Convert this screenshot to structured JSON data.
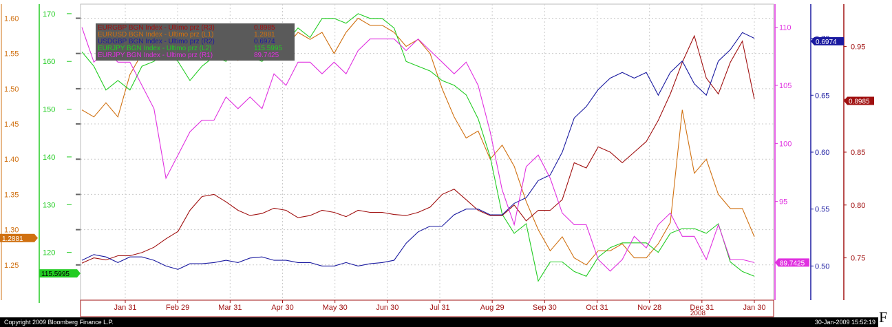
{
  "chart_data": {
    "type": "line",
    "x_ticks": [
      "Jan 31",
      "Feb 29",
      "Mar 31",
      "Apr 30",
      "May 30",
      "Jun 30",
      "Jul 31",
      "Aug 29",
      "Sep 30",
      "Oct 31",
      "Nov 28",
      "Dec 31",
      "Jan 30"
    ],
    "x_year_label": "2008",
    "grid": true,
    "axes": {
      "L1": {
        "color": "#d07010",
        "ticks": [
          "1.25",
          "1.30",
          "1.35",
          "1.40",
          "1.45",
          "1.50",
          "1.55",
          "1.60"
        ],
        "range": [
          1.2,
          1.62
        ],
        "last_badge": "1.2881"
      },
      "L2": {
        "color": "#22cc22",
        "ticks": [
          "120",
          "130",
          "140",
          "150",
          "160",
          "170"
        ],
        "range": [
          110,
          172
        ],
        "last_badge": "115.5995"
      },
      "R1": {
        "color": "#e030e0",
        "ticks": [
          "95",
          "100",
          "105",
          "110"
        ],
        "range": [
          86.5,
          112.0
        ],
        "last_badge": "89.7425"
      },
      "R2": {
        "color": "#1a1aa0",
        "ticks": [
          "0.50",
          "0.55",
          "0.60",
          "0.65",
          "0.70"
        ],
        "range": [
          0.47,
          0.73
        ],
        "last_badge": "0.6974"
      },
      "R3": {
        "color": "#a01010",
        "ticks": [
          "0.75",
          "0.80",
          "0.85",
          "0.90",
          "0.95"
        ],
        "range": [
          0.71,
          0.99
        ],
        "last_badge": "0.8985"
      }
    },
    "series": [
      {
        "name": "EURUSD BGN Index - Ultimo prz (L1)",
        "axis": "L1",
        "color": "#d07010",
        "values": [
          1.47,
          1.46,
          1.48,
          1.46,
          1.52,
          1.55,
          1.56,
          1.56,
          1.58,
          1.57,
          1.55,
          1.56,
          1.55,
          1.54,
          1.57,
          1.59,
          1.57,
          1.56,
          1.58,
          1.57,
          1.58,
          1.55,
          1.58,
          1.6,
          1.59,
          1.59,
          1.58,
          1.56,
          1.57,
          1.55,
          1.5,
          1.46,
          1.43,
          1.44,
          1.4,
          1.42,
          1.39,
          1.34,
          1.3,
          1.27,
          1.29,
          1.26,
          1.25,
          1.27,
          1.27,
          1.28,
          1.26,
          1.26,
          1.28,
          1.31,
          1.47,
          1.38,
          1.4,
          1.35,
          1.33,
          1.33,
          1.29
        ]
      },
      {
        "name": "EURJPY BGN Index - Ultimo prz (L2)",
        "axis": "L2",
        "color": "#22cc22",
        "values": [
          162,
          159,
          154,
          156,
          154,
          159,
          160,
          162,
          160,
          156,
          159,
          161,
          160,
          164,
          161,
          160,
          162,
          164,
          167,
          165,
          169,
          169,
          168,
          170,
          169,
          169,
          167,
          160,
          159,
          158,
          156,
          155,
          153,
          148,
          140,
          128,
          124,
          126,
          114,
          118,
          118,
          116,
          115,
          119,
          121,
          122,
          122,
          122,
          120,
          124,
          125,
          125,
          124,
          126,
          118,
          116,
          115
        ]
      },
      {
        "name": "EURGBP BGN Index - Ultimo prz (R3)",
        "axis": "R3",
        "color": "#a01010",
        "values": [
          0.745,
          0.75,
          0.748,
          0.752,
          0.752,
          0.755,
          0.76,
          0.768,
          0.775,
          0.795,
          0.808,
          0.81,
          0.803,
          0.795,
          0.79,
          0.792,
          0.797,
          0.795,
          0.788,
          0.79,
          0.795,
          0.793,
          0.789,
          0.795,
          0.793,
          0.793,
          0.791,
          0.79,
          0.793,
          0.798,
          0.81,
          0.815,
          0.805,
          0.795,
          0.79,
          0.79,
          0.8,
          0.785,
          0.795,
          0.795,
          0.805,
          0.84,
          0.835,
          0.855,
          0.85,
          0.84,
          0.85,
          0.86,
          0.88,
          0.905,
          0.935,
          0.96,
          0.92,
          0.905,
          0.935,
          0.955,
          0.9
        ]
      },
      {
        "name": "USDGBP BGN Index - Ultimo prz (R2)",
        "axis": "R2",
        "color": "#1a1aa0",
        "values": [
          0.505,
          0.51,
          0.508,
          0.503,
          0.508,
          0.508,
          0.505,
          0.5,
          0.497,
          0.502,
          0.502,
          0.503,
          0.505,
          0.503,
          0.507,
          0.508,
          0.505,
          0.505,
          0.503,
          0.503,
          0.5,
          0.5,
          0.503,
          0.5,
          0.502,
          0.503,
          0.505,
          0.52,
          0.53,
          0.535,
          0.535,
          0.545,
          0.55,
          0.55,
          0.545,
          0.545,
          0.555,
          0.56,
          0.575,
          0.58,
          0.6,
          0.63,
          0.64,
          0.655,
          0.665,
          0.67,
          0.665,
          0.67,
          0.65,
          0.67,
          0.68,
          0.66,
          0.65,
          0.68,
          0.69,
          0.705,
          0.7
        ]
      },
      {
        "name": "EURJPY BGN Index - Ultimo prz (R1)",
        "axis": "R1",
        "color": "#e030e0",
        "values": [
          110,
          107,
          108,
          107,
          107,
          105,
          103,
          97,
          99,
          101,
          102,
          102,
          104,
          103,
          104,
          103,
          106,
          105,
          107,
          107,
          106,
          107,
          106,
          108,
          109,
          109,
          109,
          108,
          109,
          108,
          107,
          106,
          107,
          105,
          101,
          96,
          93,
          98,
          99,
          97,
          94,
          93,
          93,
          90,
          89,
          90,
          92,
          91,
          93,
          94,
          92,
          92,
          90,
          93,
          90,
          90,
          89.74
        ]
      }
    ]
  },
  "legend": {
    "rows": [
      {
        "label": "EURGBP BGN Index - Ultimo prz (R3)",
        "value": "0.8985",
        "color": "#a01010"
      },
      {
        "label": "EURUSD BGN Index - Ultimo prz (L1)",
        "value": "1.2881",
        "color": "#d07010"
      },
      {
        "label": "USDGBP BGN Index - Ultimo prz (R2)",
        "value": "0.6974",
        "color": "#1a1aa0"
      },
      {
        "label": "EURJPY BGN Index - Ultimo prz (L2)",
        "value": "115.5995",
        "color": "#22cc22"
      },
      {
        "label": "EURJPY BGN Index - Ultimo prz (R1)",
        "value": "89.7425",
        "color": "#e030e0"
      }
    ]
  },
  "footer": {
    "copyright": "Copyright 2009 Bloomberg Finance L.P.",
    "timestamp": "30-Jan-2009 15:52:19",
    "edge_glyph": "F"
  }
}
